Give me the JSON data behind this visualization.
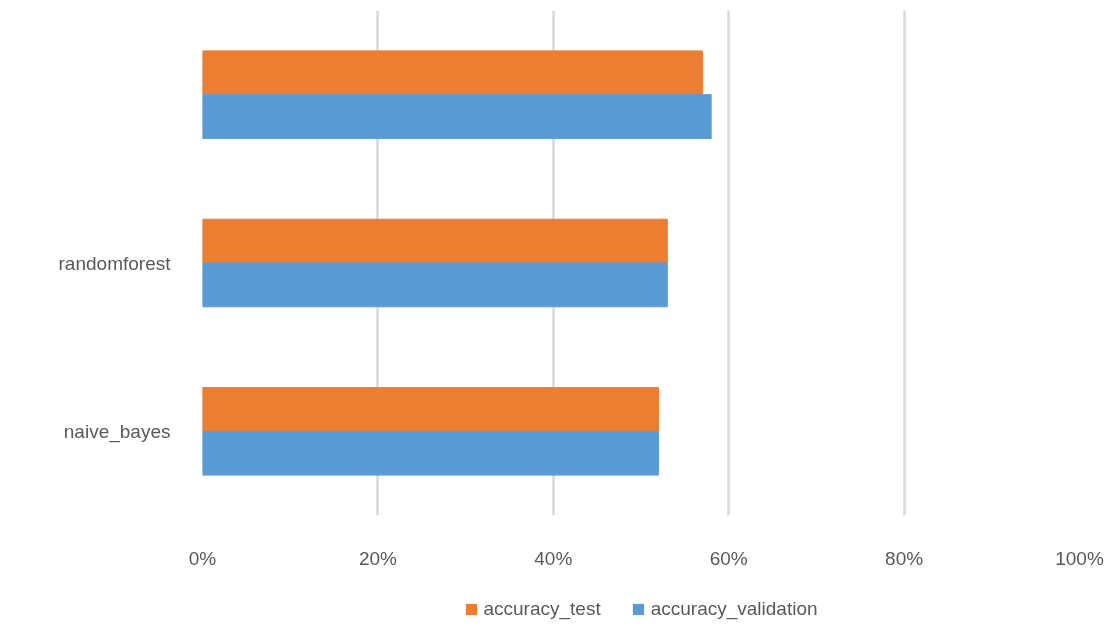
{
  "chart_data": {
    "type": "bar",
    "orientation": "horizontal",
    "categories": [
      null,
      "randomforest",
      "naive_bayes"
    ],
    "series": [
      {
        "name": "accuracy_test",
        "color": "#ed7d31",
        "values": [
          57,
          53,
          52
        ]
      },
      {
        "name": "accuracy_validation",
        "color": "#5b9bd5",
        "values": [
          58,
          53,
          52
        ]
      }
    ],
    "xlim": [
      0,
      100
    ],
    "xticks": [
      {
        "value": 0,
        "label": "0%"
      },
      {
        "value": 20,
        "label": "20%"
      },
      {
        "value": 40,
        "label": "40%"
      },
      {
        "value": 60,
        "label": "60%"
      },
      {
        "value": 80,
        "label": "80%"
      },
      {
        "value": 100,
        "label": "100%"
      }
    ],
    "grid": "x",
    "legend": "bottom"
  }
}
